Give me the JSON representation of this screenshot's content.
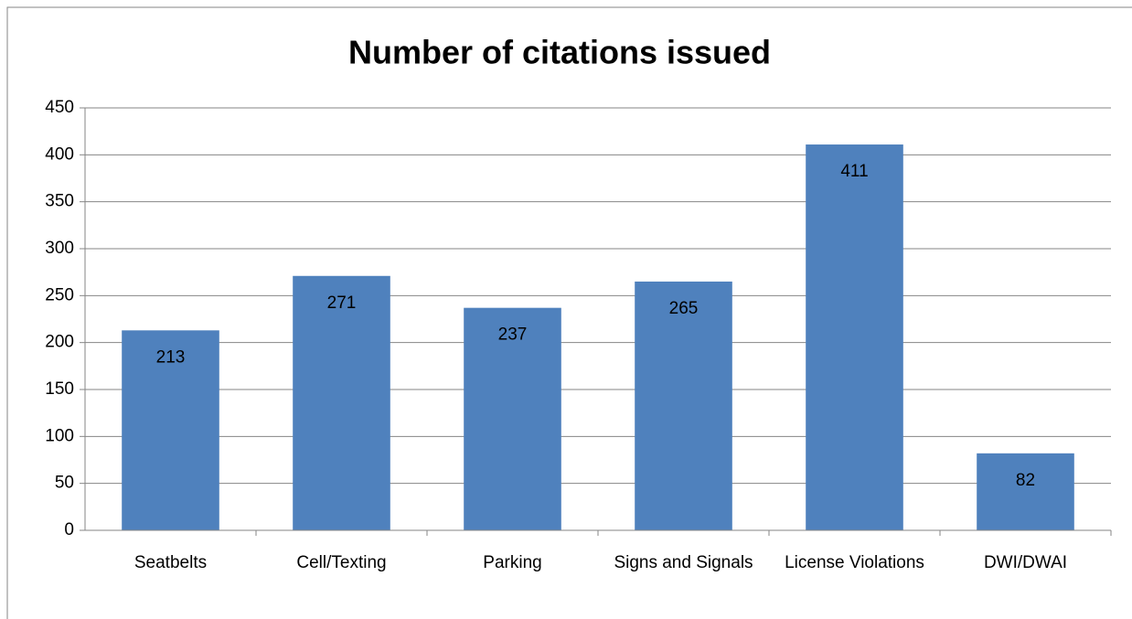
{
  "chart_data": {
    "type": "bar",
    "title": "Number of citations issued",
    "categories": [
      "Seatbelts",
      "Cell/Texting",
      "Parking",
      "Signs and Signals",
      "License Violations",
      "DWI/DWAI"
    ],
    "values": [
      213,
      271,
      237,
      265,
      411,
      82
    ],
    "color": "#4f81bd",
    "ylim": [
      0,
      450
    ],
    "yticks": [
      0,
      50,
      100,
      150,
      200,
      250,
      300,
      350,
      400,
      450
    ],
    "grid": true
  }
}
